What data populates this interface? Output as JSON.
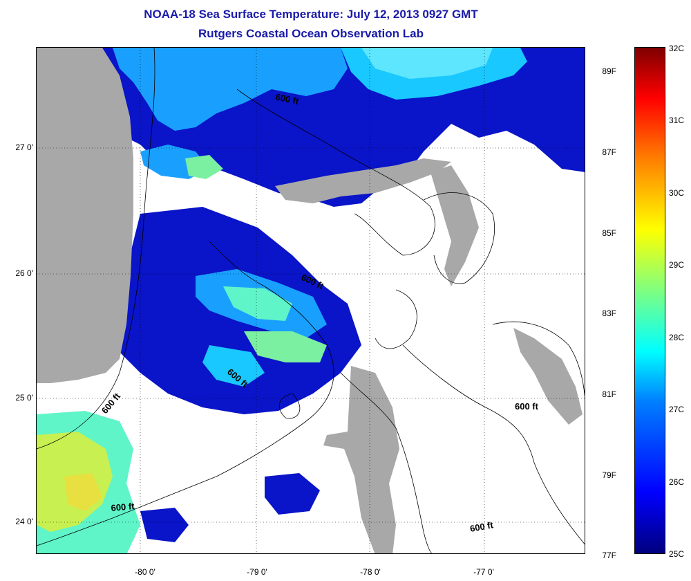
{
  "title_line1": "NOAA-18 Sea Surface Temperature:  July 12, 2013 0927 GMT",
  "title_line2": "Rutgers Coastal Ocean Observation Lab",
  "x_ticks": [
    "-80 0'",
    "-79 0'",
    "-78 0'",
    "-77 0'"
  ],
  "y_ticks": [
    "27 0'",
    "26 0'",
    "25 0'",
    "24 0'"
  ],
  "contour_label": "600 ft",
  "colorbar": {
    "fahrenheit": [
      "89F",
      "87F",
      "85F",
      "83F",
      "81F",
      "79F",
      "77F"
    ],
    "celsius": [
      "32C",
      "31C",
      "30C",
      "29C",
      "28C",
      "27C",
      "26C",
      "25C"
    ]
  },
  "colors": {
    "title": "#1a1aa8",
    "land": "#a8a8a8",
    "sst_deep": "#0a14c8",
    "sst_mid": "#19a0ff",
    "sst_warm": "#5ff5c8",
    "sst_yellow": "#c8f050"
  }
}
